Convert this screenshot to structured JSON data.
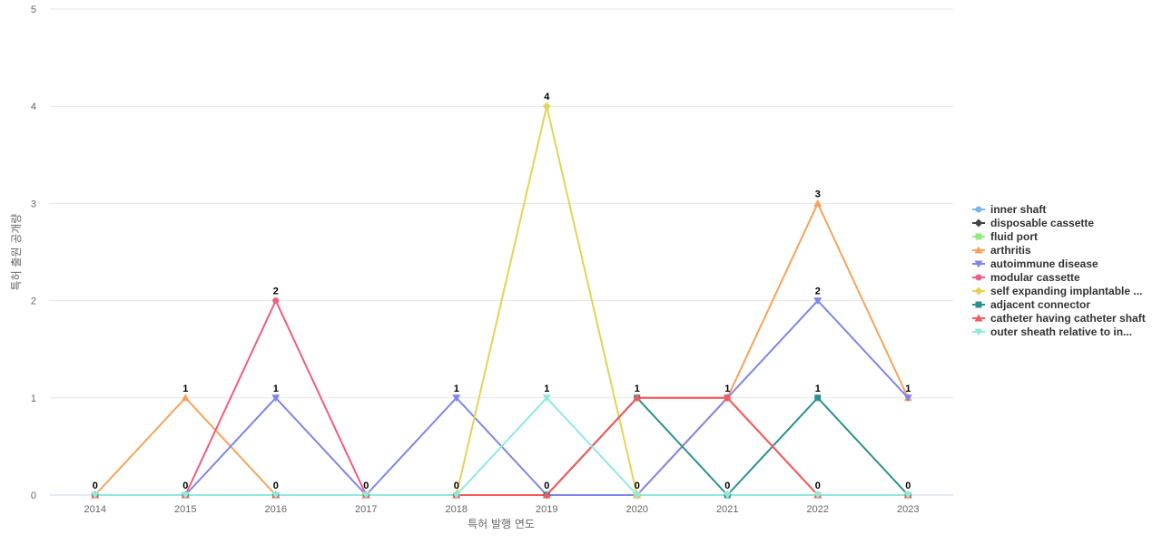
{
  "chart_data": {
    "type": "line",
    "title": "",
    "xlabel": "특허 발행 연도",
    "ylabel": "특허 출원 공개량",
    "categories": [
      "2014",
      "2015",
      "2016",
      "2017",
      "2018",
      "2019",
      "2020",
      "2021",
      "2022",
      "2023"
    ],
    "ylim": [
      0,
      5
    ],
    "yticks": [
      0,
      1,
      2,
      3,
      4,
      5
    ],
    "grid": true,
    "legend_position": "right",
    "series": [
      {
        "name": "inner shaft",
        "color": "#7cb5ec",
        "marker": "circle",
        "values": [
          0,
          0,
          0,
          0,
          0,
          0,
          0,
          0,
          0,
          0
        ]
      },
      {
        "name": "disposable cassette",
        "color": "#434348",
        "marker": "diamond",
        "values": [
          0,
          0,
          0,
          0,
          0,
          0,
          0,
          0,
          0,
          0
        ]
      },
      {
        "name": "fluid port",
        "color": "#90ed7d",
        "marker": "square",
        "values": [
          0,
          0,
          0,
          0,
          0,
          0,
          0,
          0,
          0,
          0
        ]
      },
      {
        "name": "arthritis",
        "color": "#f7a35c",
        "marker": "triangle",
        "values": [
          0,
          1,
          0,
          0,
          0,
          0,
          0,
          1,
          3,
          1
        ]
      },
      {
        "name": "autoimmune disease",
        "color": "#8085e9",
        "marker": "triangle-down",
        "values": [
          0,
          0,
          1,
          0,
          1,
          0,
          0,
          1,
          2,
          1
        ]
      },
      {
        "name": "modular cassette",
        "color": "#f15c80",
        "marker": "circle",
        "values": [
          0,
          0,
          2,
          0,
          0,
          0,
          1,
          1,
          0,
          0
        ]
      },
      {
        "name": "self expanding implantable ...",
        "color": "#e4d354",
        "marker": "diamond",
        "values": [
          0,
          0,
          0,
          0,
          0,
          4,
          0,
          0,
          0,
          0
        ]
      },
      {
        "name": "adjacent connector",
        "color": "#2b908f",
        "marker": "square",
        "values": [
          0,
          0,
          0,
          0,
          0,
          0,
          1,
          0,
          1,
          0
        ]
      },
      {
        "name": "catheter having catheter shaft",
        "color": "#f45b5b",
        "marker": "triangle",
        "values": [
          0,
          0,
          0,
          0,
          0,
          0,
          1,
          1,
          0,
          0
        ]
      },
      {
        "name": "outer sheath relative to in...",
        "color": "#91e8e1",
        "marker": "triangle-down",
        "values": [
          0,
          0,
          0,
          0,
          0,
          1,
          0,
          0,
          0,
          0
        ]
      }
    ],
    "data_labels": [
      {
        "category": "2014",
        "value": 0
      },
      {
        "category": "2015",
        "value": 1
      },
      {
        "category": "2015",
        "value": 0
      },
      {
        "category": "2016",
        "value": 2
      },
      {
        "category": "2016",
        "value": 1
      },
      {
        "category": "2016",
        "value": 0
      },
      {
        "category": "2017",
        "value": 0
      },
      {
        "category": "2018",
        "value": 1
      },
      {
        "category": "2018",
        "value": 0
      },
      {
        "category": "2019",
        "value": 4
      },
      {
        "category": "2019",
        "value": 1
      },
      {
        "category": "2019",
        "value": 0
      },
      {
        "category": "2020",
        "value": 1
      },
      {
        "category": "2020",
        "value": 0
      },
      {
        "category": "2021",
        "value": 1
      },
      {
        "category": "2021",
        "value": 0
      },
      {
        "category": "2022",
        "value": 3
      },
      {
        "category": "2022",
        "value": 2
      },
      {
        "category": "2022",
        "value": 1
      },
      {
        "category": "2022",
        "value": 0
      },
      {
        "category": "2023",
        "value": 1
      },
      {
        "category": "2023",
        "value": 0
      }
    ]
  }
}
